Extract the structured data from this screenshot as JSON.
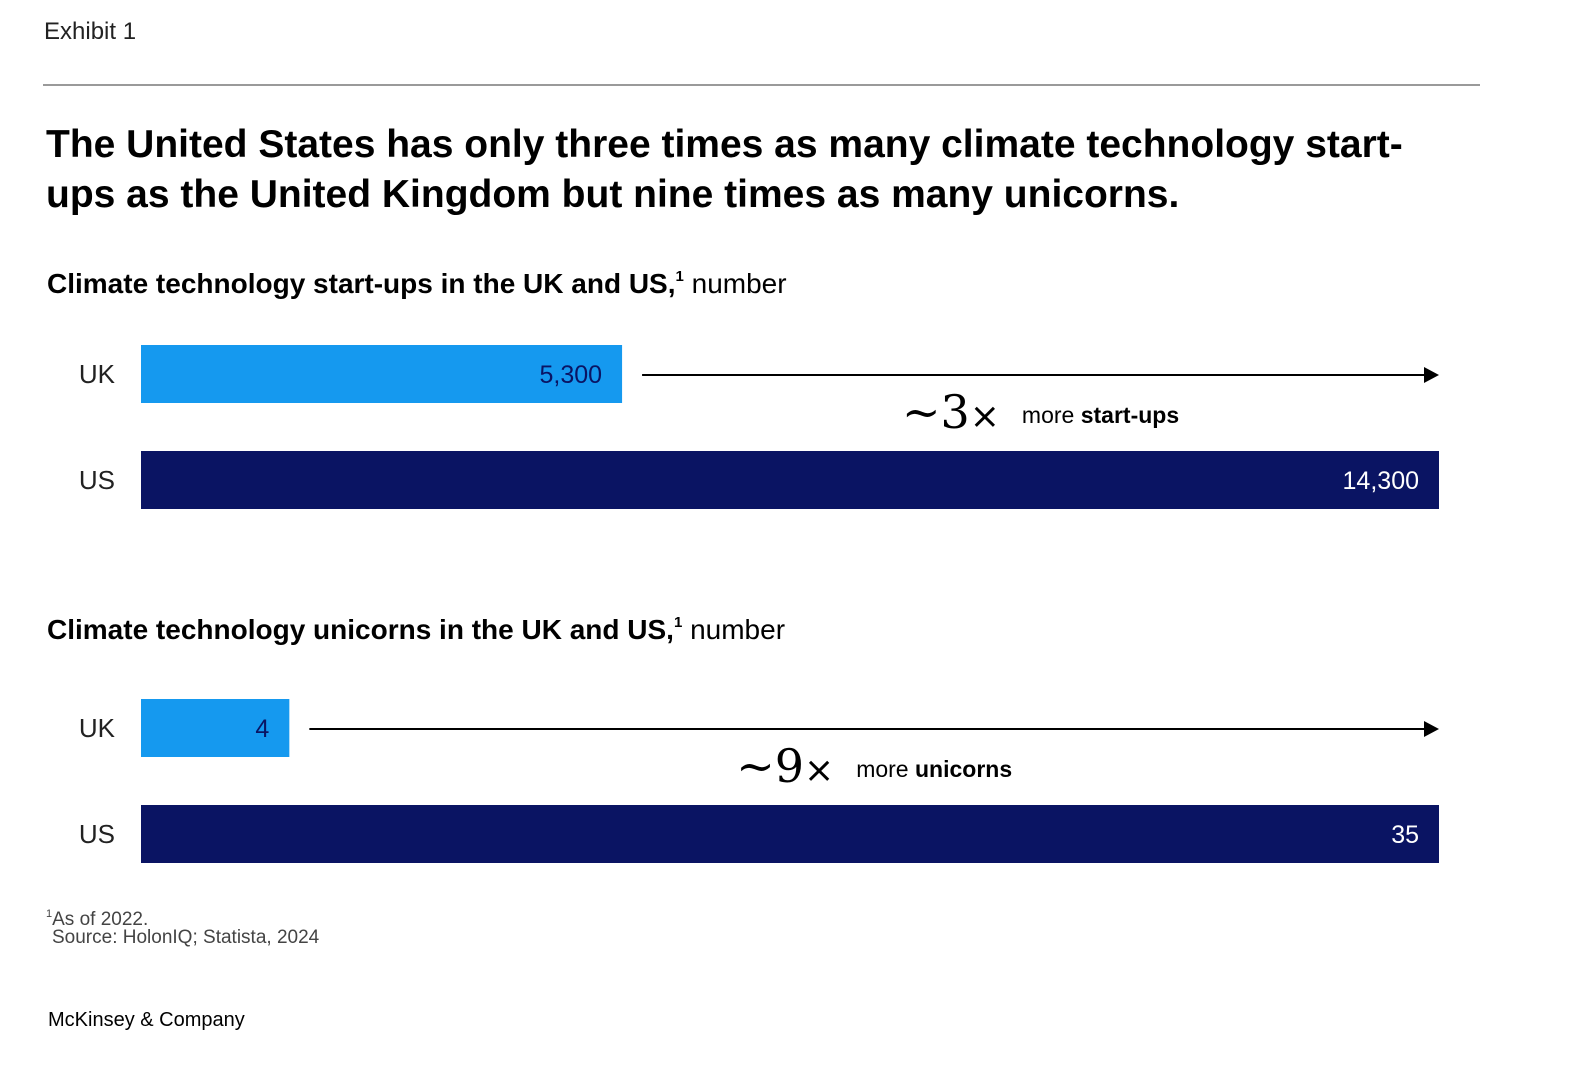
{
  "exhibit_label": "Exhibit 1",
  "title": "The United States has only three times as many climate technology start-ups as the United Kingdom but nine times as many unicorns.",
  "colors": {
    "uk": "#1599ef",
    "us": "#0a1463",
    "arrow": "#000000"
  },
  "chart_data": [
    {
      "type": "bar",
      "orientation": "horizontal",
      "title_bold": "Climate technology start-ups in the UK and US,",
      "title_sup": "1",
      "title_unit": "number",
      "categories": [
        "UK",
        "US"
      ],
      "values": [
        5300,
        14300
      ],
      "value_labels": [
        "5,300",
        "14,300"
      ],
      "xlim": [
        0,
        14300
      ],
      "annotation": {
        "multiplier": "~3",
        "times": "×",
        "prefix": "more ",
        "emphasis": "start-ups"
      }
    },
    {
      "type": "bar",
      "orientation": "horizontal",
      "title_bold": "Climate technology unicorns in the UK and US,",
      "title_sup": "1",
      "title_unit": "number",
      "categories": [
        "UK",
        "US"
      ],
      "values": [
        4,
        35
      ],
      "value_labels": [
        "4",
        "35"
      ],
      "xlim": [
        0,
        35
      ],
      "annotation": {
        "multiplier": "~9",
        "times": "×",
        "prefix": "more ",
        "emphasis": "unicorns"
      }
    }
  ],
  "footnote": {
    "marker": "1",
    "text": "As of 2022."
  },
  "source": "Source: HolonIQ; Statista, 2024",
  "brand": "McKinsey & Company"
}
